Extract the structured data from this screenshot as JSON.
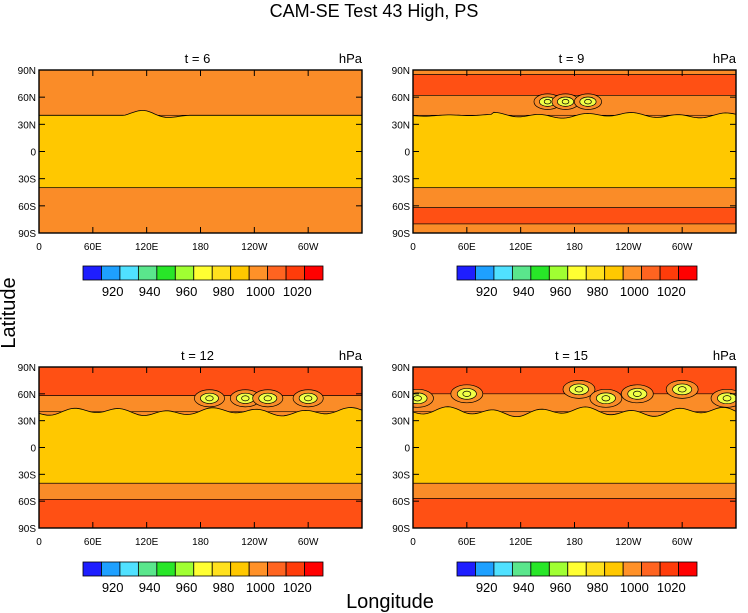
{
  "title": "CAM-SE Test 43 High, PS",
  "xlabel": "Longitude",
  "ylabel": "Latitude",
  "chart_data": [
    {
      "type": "heatmap",
      "title": "t = 6",
      "units": "hPa",
      "x_ticks": [
        "0",
        "60E",
        "120E",
        "180",
        "120W",
        "60W"
      ],
      "y_ticks": [
        "90N",
        "60N",
        "30N",
        "0",
        "30S",
        "60S",
        "90S"
      ],
      "levels": [
        910,
        920,
        930,
        940,
        950,
        960,
        970,
        980,
        990,
        1000,
        1010,
        1020
      ],
      "bands": [
        {
          "lat": [
            40,
            90
          ],
          "value": 1005
        },
        {
          "lat": [
            -40,
            40
          ],
          "value": 995
        },
        {
          "lat": [
            -90,
            -40
          ],
          "value": 1005
        }
      ],
      "wave_amp": 0.3
    },
    {
      "type": "heatmap",
      "title": "t = 9",
      "units": "hPa",
      "x_ticks": [
        "0",
        "60E",
        "120E",
        "180",
        "120W",
        "60W"
      ],
      "y_ticks": [
        "90N",
        "60N",
        "30N",
        "0",
        "30S",
        "60S",
        "90S"
      ],
      "levels": [
        910,
        920,
        930,
        940,
        950,
        960,
        970,
        980,
        990,
        1000,
        1010,
        1020
      ],
      "bands": [
        {
          "lat": [
            85,
            90
          ],
          "value": 1005
        },
        {
          "lat": [
            62,
            85
          ],
          "value": 1015
        },
        {
          "lat": [
            40,
            62
          ],
          "value": 1005
        },
        {
          "lat": [
            -40,
            40
          ],
          "value": 995
        },
        {
          "lat": [
            -62,
            -40
          ],
          "value": 1005
        },
        {
          "lat": [
            -80,
            -62
          ],
          "value": 1015
        },
        {
          "lat": [
            -90,
            -80
          ],
          "value": 1005
        }
      ],
      "wave_amp": 0.6
    },
    {
      "type": "heatmap",
      "title": "t = 12",
      "units": "hPa",
      "x_ticks": [
        "0",
        "60E",
        "120E",
        "180",
        "120W",
        "60W"
      ],
      "y_ticks": [
        "90N",
        "60N",
        "30N",
        "0",
        "30S",
        "60S",
        "90S"
      ],
      "levels": [
        910,
        920,
        930,
        940,
        950,
        960,
        970,
        980,
        990,
        1000,
        1010,
        1020
      ],
      "bands": [
        {
          "lat": [
            58,
            90
          ],
          "value": 1015
        },
        {
          "lat": [
            40,
            58
          ],
          "value": 1005
        },
        {
          "lat": [
            -40,
            40
          ],
          "value": 995
        },
        {
          "lat": [
            -58,
            -40
          ],
          "value": 1005
        },
        {
          "lat": [
            -90,
            -58
          ],
          "value": 1015
        }
      ],
      "wave_amp": 0.85
    },
    {
      "type": "heatmap",
      "title": "t = 15",
      "units": "hPa",
      "x_ticks": [
        "0",
        "60E",
        "120E",
        "180",
        "120W",
        "60W"
      ],
      "y_ticks": [
        "90N",
        "60N",
        "30N",
        "0",
        "30S",
        "60S",
        "90S"
      ],
      "levels": [
        910,
        920,
        930,
        940,
        950,
        960,
        970,
        980,
        990,
        1000,
        1010,
        1020
      ],
      "bands": [
        {
          "lat": [
            60,
            90
          ],
          "value": 1015
        },
        {
          "lat": [
            40,
            60
          ],
          "value": 1005
        },
        {
          "lat": [
            -40,
            40
          ],
          "value": 995
        },
        {
          "lat": [
            -57,
            -40
          ],
          "value": 1005
        },
        {
          "lat": [
            -90,
            -57
          ],
          "value": 1015
        }
      ],
      "wave_amp": 1.0
    }
  ],
  "colorbar": {
    "colors": [
      "#1e1eff",
      "#1ea0ff",
      "#50e1ff",
      "#5ae68c",
      "#28e628",
      "#a0ff32",
      "#ffff32",
      "#ffe11e",
      "#ffc800",
      "#ff9128",
      "#ff6420",
      "#ff3c0a",
      "#ff0000"
    ],
    "labels": [
      "920",
      "940",
      "960",
      "980",
      "1000",
      "1020"
    ]
  },
  "colors": {
    "band_995": "#ffc800",
    "band_1005": "#fa8c28",
    "band_1015": "#ff5014",
    "eddy_yellow": "#f0ff46",
    "eddy_deep": "#ff2000"
  }
}
